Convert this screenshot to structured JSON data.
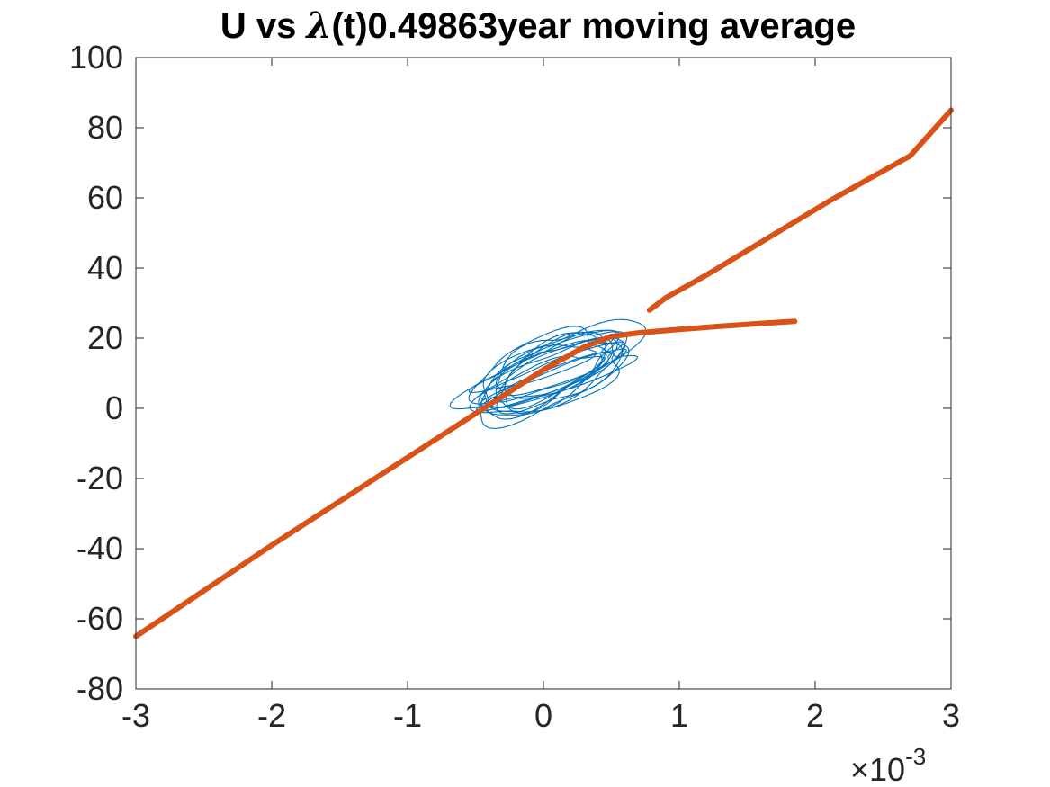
{
  "chart_data": {
    "type": "line",
    "title_prefix": "U vs ",
    "title_symbol": "λ",
    "title_suffix": "(t)0.49863year moving average",
    "xlabel": "",
    "ylabel": "",
    "xlim": [
      -3,
      3
    ],
    "ylim": [
      -80,
      100
    ],
    "x_ticks": [
      -3,
      -2,
      -1,
      0,
      1,
      2,
      3
    ],
    "x_tick_labels": [
      "-3",
      "-2",
      "-1",
      "0",
      "1",
      "2",
      "3"
    ],
    "y_ticks": [
      -80,
      -60,
      -40,
      -20,
      0,
      20,
      40,
      60,
      80,
      100
    ],
    "y_tick_labels": [
      "-80",
      "-60",
      "-40",
      "-20",
      "0",
      "20",
      "40",
      "60",
      "80",
      "100"
    ],
    "x_multiplier_prefix": "×10",
    "x_multiplier_exponent": "-3",
    "grid": false,
    "colors": {
      "series_thin": "#0072BD",
      "series_thick": "#D95319",
      "axis": "#262626"
    },
    "series": [
      {
        "style": "thin-loop",
        "loop_center": [
          0.05,
          10
        ],
        "loop_extent": "x from -0.6 to 0.7, y from -3 to 23"
      },
      {
        "style": "thick",
        "x": [
          -3.0,
          -2.5,
          -2.0,
          -1.5,
          -1.0,
          -0.5,
          0.0,
          0.3,
          0.5,
          0.7,
          1.0,
          1.3,
          1.6,
          1.85
        ],
        "y": [
          -65,
          -52,
          -39,
          -26.5,
          -14,
          -1.5,
          11,
          17.5,
          20.5,
          21.5,
          22.5,
          23.4,
          24.2,
          24.8
        ]
      },
      {
        "style": "thick",
        "x": [
          0.78,
          0.9,
          1.2,
          1.5,
          1.8,
          2.1,
          2.4,
          2.7,
          3.0
        ],
        "y": [
          28,
          31.5,
          38,
          45,
          52,
          59,
          65.5,
          72,
          85
        ]
      }
    ]
  }
}
